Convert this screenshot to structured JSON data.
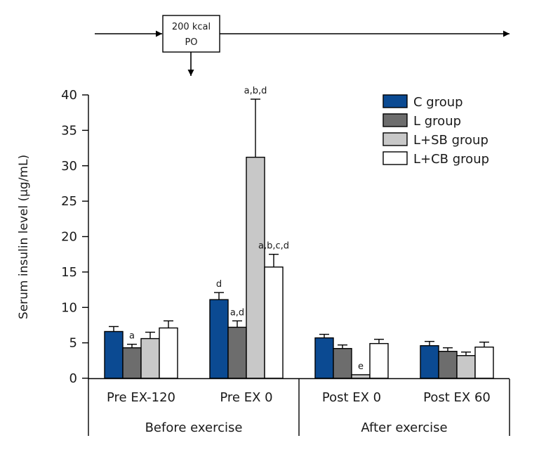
{
  "chart_data": {
    "type": "bar",
    "title": "",
    "ylabel": "Serum insulin level (μg/mL)",
    "xlabel": "",
    "ylim": [
      0,
      40
    ],
    "yticks": [
      0,
      5,
      10,
      15,
      20,
      25,
      30,
      35,
      40
    ],
    "categories": [
      "Pre EX-120",
      "Pre EX 0",
      "Post EX 0",
      "Post EX 60"
    ],
    "category_groups": [
      {
        "label": "Before exercise",
        "categories": [
          "Pre EX-120",
          "Pre EX 0"
        ]
      },
      {
        "label": "After exercise",
        "categories": [
          "Post EX 0",
          "Post EX 60"
        ]
      }
    ],
    "legend_position": "top-right",
    "series": [
      {
        "name": "C group",
        "color": "#0b4a92",
        "values": [
          6.6,
          11.1,
          5.7,
          4.6
        ],
        "errors": [
          0.7,
          1.0,
          0.5,
          0.6
        ],
        "annotations": [
          "",
          "d",
          "",
          ""
        ]
      },
      {
        "name": "L group",
        "color": "#6d6d6d",
        "values": [
          4.3,
          7.2,
          4.2,
          3.8
        ],
        "errors": [
          0.5,
          0.9,
          0.5,
          0.5
        ],
        "annotations": [
          "a",
          "a,d",
          "",
          ""
        ]
      },
      {
        "name": "L+SB group",
        "color": "#c8c8c8",
        "values": [
          5.6,
          31.2,
          0.5,
          3.2
        ],
        "errors": [
          0.9,
          8.2,
          0.0,
          0.5
        ],
        "annotations": [
          "",
          "a,b,d",
          "e",
          ""
        ]
      },
      {
        "name": "L+CB group",
        "color": "#ffffff",
        "values": [
          7.1,
          15.7,
          4.9,
          4.4
        ],
        "errors": [
          1.0,
          1.8,
          0.6,
          0.7
        ],
        "annotations": [
          "",
          "a,b,c,d",
          "",
          ""
        ]
      }
    ],
    "timeline": {
      "box_line1": "200 kcal",
      "box_line2": "PO"
    }
  }
}
